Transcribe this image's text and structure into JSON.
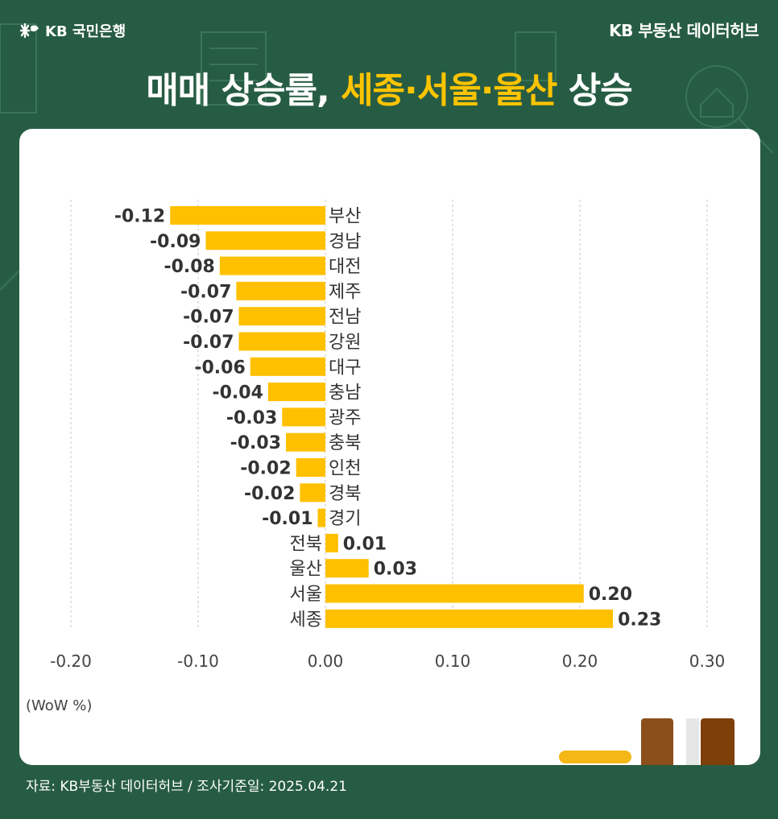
{
  "brand": {
    "logo_text": "KB 국민은행",
    "right_title": "KB 부동산 데이터허브"
  },
  "headline": {
    "part1": "매매 상승률, ",
    "part2": "세종·서울·울산",
    "part3": " 상승"
  },
  "footer": {
    "source": "자료: KB부동산 데이터허브 / 조사기준일: 2025.04.21"
  },
  "colors": {
    "background": "#275c44",
    "bar": "#ffc000",
    "highlight": "#ffc400"
  },
  "chart_data": {
    "type": "bar",
    "orientation": "horizontal",
    "unit_label": "(WoW %)",
    "xlim": [
      -0.2,
      0.3
    ],
    "xticks": [
      -0.2,
      -0.1,
      0.0,
      0.1,
      0.2,
      0.3
    ],
    "xtick_labels": [
      "-0.20",
      "-0.10",
      "0.00",
      "0.10",
      "0.20",
      "0.30"
    ],
    "grid": "vertical dashed",
    "categories": [
      "부산",
      "경남",
      "대전",
      "제주",
      "전남",
      "강원",
      "대구",
      "충남",
      "광주",
      "충북",
      "인천",
      "경북",
      "경기",
      "전북",
      "울산",
      "서울",
      "세종"
    ],
    "values": [
      -0.12,
      -0.09,
      -0.08,
      -0.07,
      -0.07,
      -0.07,
      -0.06,
      -0.04,
      -0.03,
      -0.03,
      -0.02,
      -0.02,
      -0.01,
      0.01,
      0.03,
      0.2,
      0.23
    ],
    "value_labels": [
      "-0.12",
      "-0.09",
      "-0.08",
      "-0.07",
      "-0.07",
      "-0.07",
      "-0.06",
      "-0.04",
      "-0.03",
      "-0.03",
      "-0.02",
      "-0.02",
      "-0.01",
      "0.01",
      "0.03",
      "0.20",
      "0.23"
    ],
    "plot_values": [
      -0.122,
      -0.094,
      -0.083,
      -0.07,
      -0.068,
      -0.068,
      -0.059,
      -0.045,
      -0.034,
      -0.031,
      -0.023,
      -0.02,
      -0.006,
      0.01,
      0.034,
      0.203,
      0.226
    ]
  }
}
